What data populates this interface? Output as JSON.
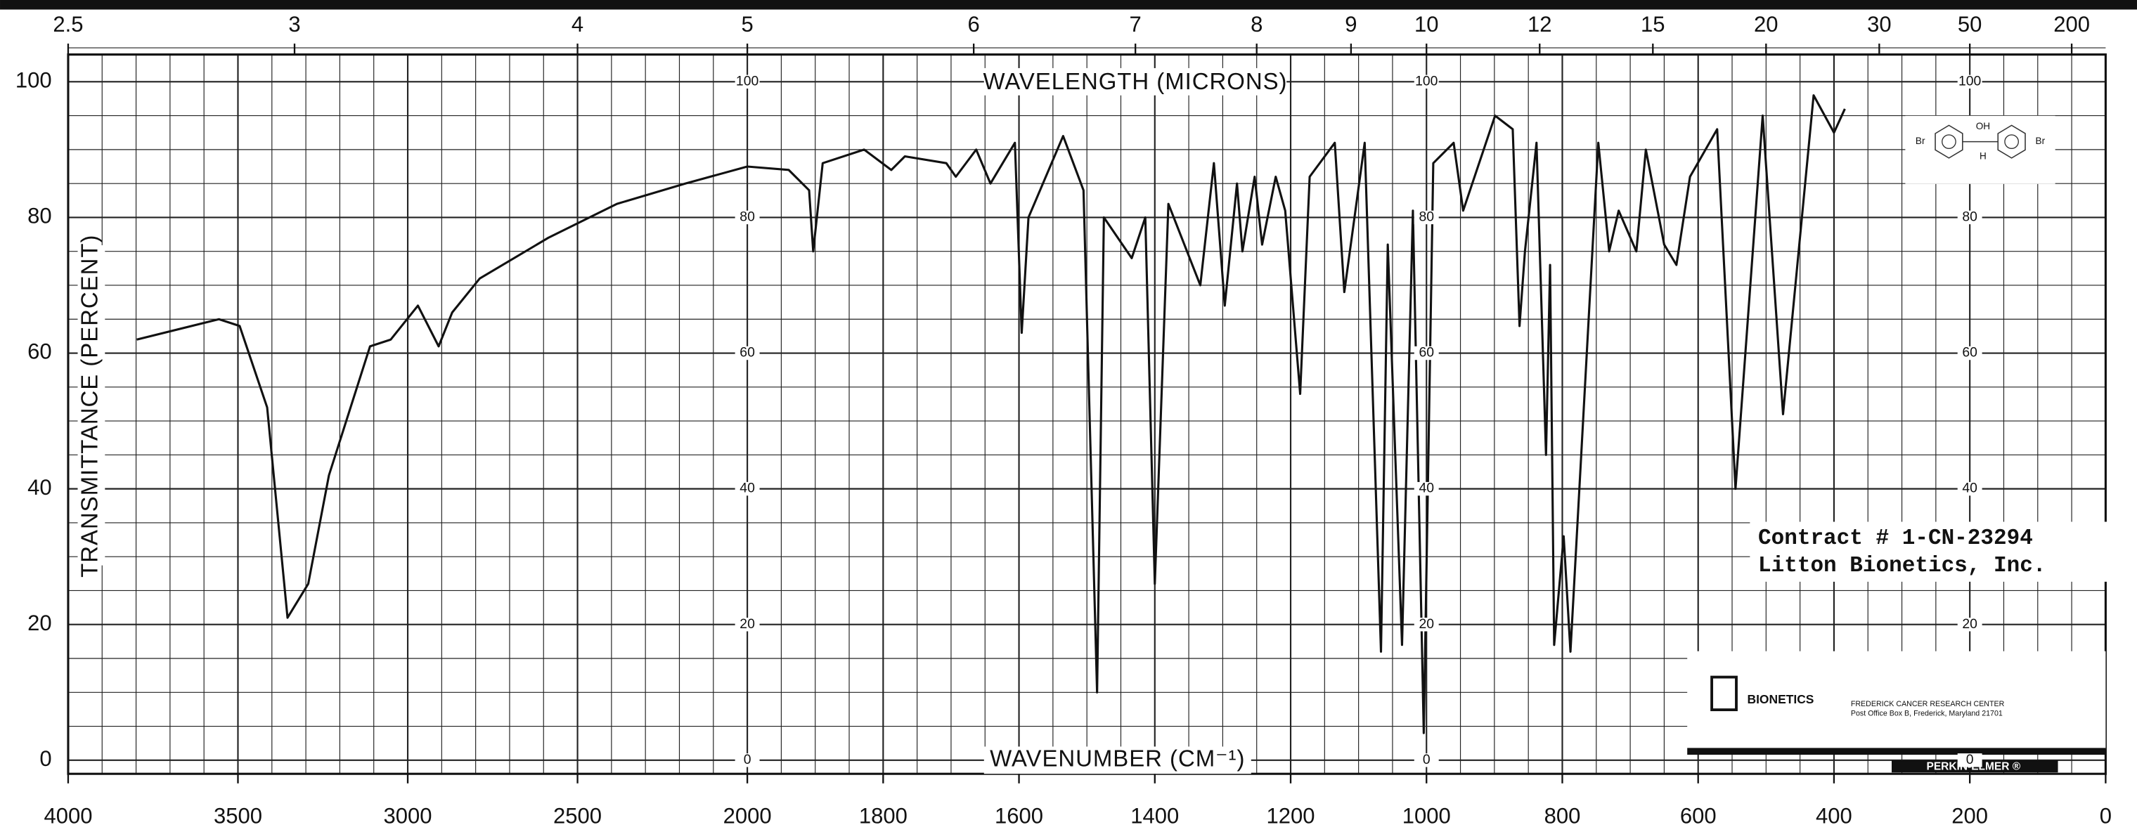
{
  "chart_data": {
    "type": "line",
    "x_label": "WAVENUMBER (CM⁻¹)",
    "y_label": "TRANSMITTANCE (PERCENT)",
    "x2_label": "WAVELENGTH (MICRONS)",
    "xlim": [
      4000,
      0
    ],
    "x_scale_break": 2000,
    "xticks": [
      4000,
      3500,
      3000,
      2500,
      2000,
      1800,
      1600,
      1400,
      1200,
      1000,
      800,
      600,
      400,
      200,
      0
    ],
    "x2ticks": [
      2.5,
      3,
      4,
      5,
      6,
      7,
      8,
      9,
      10,
      12,
      15,
      20,
      30,
      50,
      200
    ],
    "ylim": [
      0,
      100
    ],
    "yticks": [
      0,
      20,
      40,
      60,
      80,
      100
    ],
    "grid": true,
    "color": "#111111",
    "x": [
      3798,
      3556,
      3495,
      3414,
      3354,
      3293,
      3232,
      3111,
      3050,
      2970,
      2909,
      2869,
      2788,
      2586,
      2384,
      2182,
      2000,
      1939,
      1909,
      1903,
      1889,
      1828,
      1788,
      1768,
      1707,
      1693,
      1663,
      1642,
      1606,
      1596,
      1586,
      1535,
      1505,
      1485,
      1475,
      1434,
      1414,
      1400,
      1380,
      1333,
      1313,
      1297,
      1279,
      1271,
      1253,
      1242,
      1222,
      1208,
      1186,
      1172,
      1135,
      1121,
      1091,
      1067,
      1057,
      1036,
      1020,
      1004,
      990,
      960,
      946,
      899,
      873,
      863,
      855,
      838,
      824,
      818,
      812,
      798,
      788,
      747,
      731,
      717,
      691,
      677,
      650,
      632,
      612,
      572,
      545,
      505,
      475,
      430,
      400,
      384
    ],
    "values": [
      62,
      65,
      64,
      52,
      21,
      26,
      42,
      61,
      62,
      67,
      61,
      66,
      71,
      77,
      82,
      85,
      87.5,
      87,
      84,
      75,
      88,
      90,
      87,
      89,
      88,
      86,
      90,
      85,
      91,
      63,
      80,
      92,
      84,
      10,
      80,
      74,
      80,
      26,
      82,
      70,
      88,
      67,
      85,
      75,
      86,
      76,
      86,
      81,
      54,
      86,
      91,
      69,
      91,
      16,
      76,
      17,
      81,
      4,
      88,
      91,
      81,
      95,
      93,
      64,
      75,
      91,
      45,
      73,
      17,
      33,
      16,
      91,
      75,
      81,
      75,
      90,
      76,
      73,
      86,
      93,
      40,
      95,
      51,
      98,
      92.5,
      96
    ],
    "annotations": [
      "Contract # 1-CN-23294",
      "Litton Bionetics, Inc."
    ],
    "structure_labels": [
      "Br",
      "OH",
      "H",
      "Br"
    ],
    "stamp": {
      "brand": "BIONETICS",
      "center": "FREDERICK CANCER RESEARCH CENTER",
      "address": "Post Office Box B, Frederick, Maryland 21701",
      "maker": "PERKIN-ELMER ®"
    }
  }
}
